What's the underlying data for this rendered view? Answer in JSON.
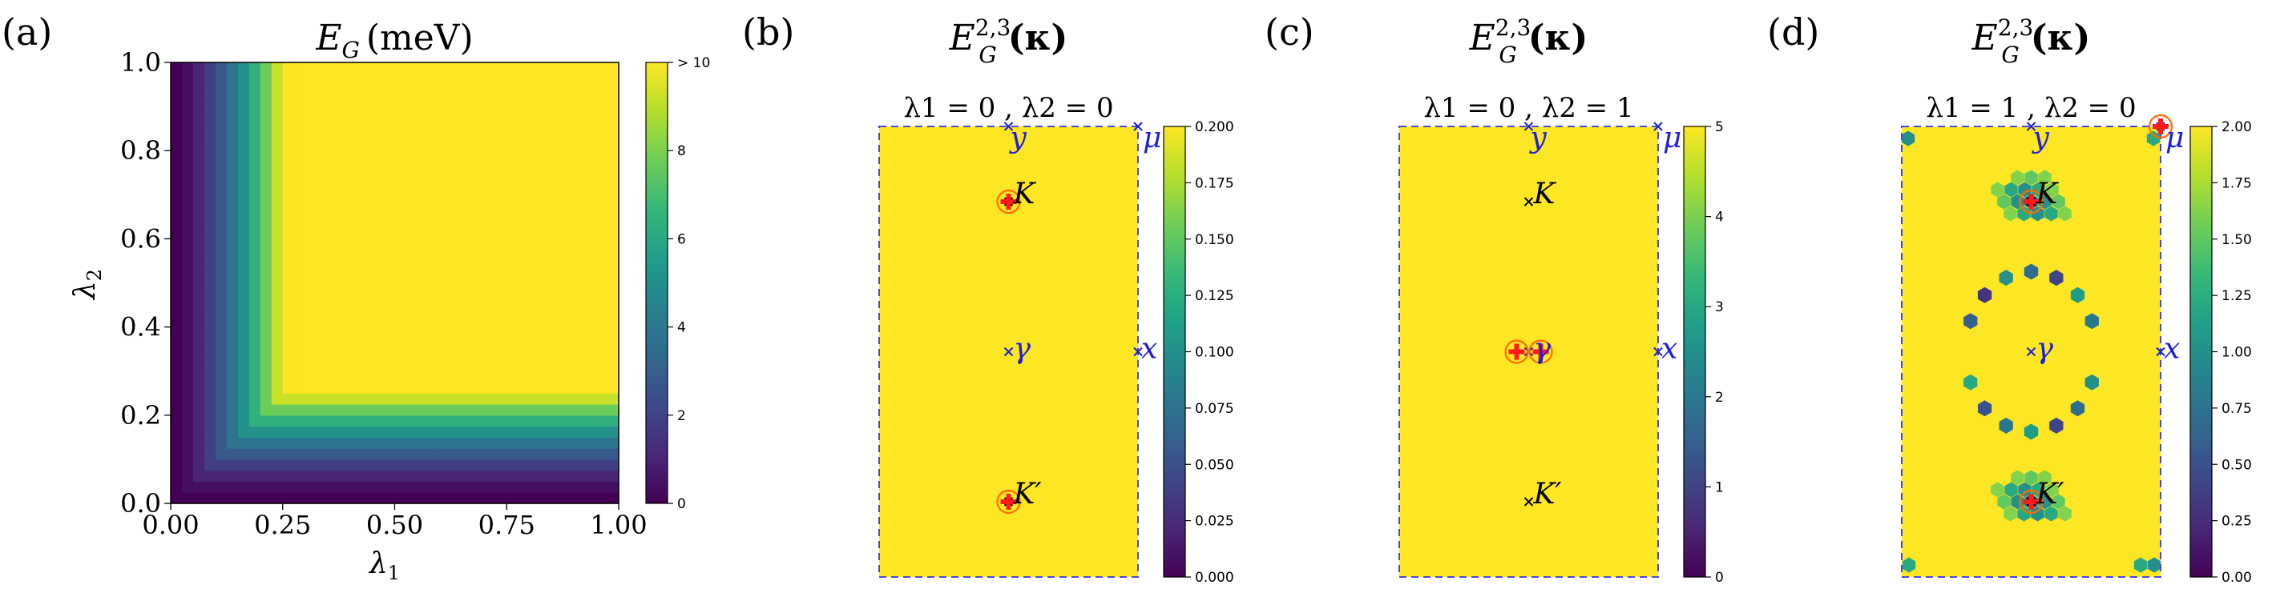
{
  "chart_data": [
    {
      "panel": "(a)",
      "type": "heatmap",
      "title": "E_G (meV)",
      "title_main": "E",
      "title_sub": "G",
      "title_unit": "(meV)",
      "xlabel": "λ1",
      "ylabel": "λ2",
      "xlim": [
        0,
        1
      ],
      "ylim": [
        0,
        1
      ],
      "xticks": [
        "0.00",
        "0.25",
        "0.50",
        "0.75",
        "1.00"
      ],
      "yticks": [
        "0.0",
        "0.2",
        "0.4",
        "0.6",
        "0.8",
        "1.0"
      ],
      "colormap": "viridis",
      "colorbar": {
        "range": [
          0,
          10
        ],
        "ticks": [
          "0",
          "2",
          "4",
          "6",
          "8",
          "> 10"
        ]
      },
      "description": "E_G saturates (>10 meV) when both λ1 and λ2 exceed about 0.25; near-zero along the axes."
    },
    {
      "panel": "(b)",
      "type": "heatmap",
      "title_main": "E",
      "title_sub": "G",
      "title_sup": "2,3",
      "title_arg": "(κ)",
      "params": "λ1 = 0 ,   λ2 = 0",
      "colorbar": {
        "range": [
          0,
          0.2
        ],
        "ticks": [
          "0.000",
          "0.025",
          "0.050",
          "0.075",
          "0.100",
          "0.125",
          "0.150",
          "0.175",
          "0.200"
        ]
      },
      "points": [
        {
          "label": "y",
          "color": "#1f1fd6"
        },
        {
          "label": "μ",
          "color": "#1f1fd6"
        },
        {
          "label": "γ",
          "color": "#1f1fd6"
        },
        {
          "label": "x",
          "color": "#1f1fd6"
        },
        {
          "label": "K",
          "color": "#000000",
          "nodal": true
        },
        {
          "label": "K′",
          "color": "#000000",
          "nodal": true
        }
      ]
    },
    {
      "panel": "(c)",
      "type": "heatmap",
      "title_main": "E",
      "title_sub": "G",
      "title_sup": "2,3",
      "title_arg": "(κ)",
      "params": "λ1 = 0 ,   λ2 = 1",
      "colorbar": {
        "range": [
          0,
          5
        ],
        "ticks": [
          "0",
          "1",
          "2",
          "3",
          "4",
          "5"
        ]
      },
      "points": [
        {
          "label": "y",
          "color": "#1f1fd6"
        },
        {
          "label": "μ",
          "color": "#1f1fd6"
        },
        {
          "label": "γ",
          "color": "#1f1fd6",
          "nodal_pair": true
        },
        {
          "label": "x",
          "color": "#1f1fd6"
        },
        {
          "label": "K",
          "color": "#000000"
        },
        {
          "label": "K′",
          "color": "#000000"
        }
      ]
    },
    {
      "panel": "(d)",
      "type": "heatmap",
      "title_main": "E",
      "title_sub": "G",
      "title_sup": "2,3",
      "title_arg": "(κ)",
      "params": "λ1 = 1 ,   λ2 = 0",
      "colorbar": {
        "range": [
          0,
          2
        ],
        "ticks": [
          "0.00",
          "0.25",
          "0.50",
          "0.75",
          "1.00",
          "1.25",
          "1.50",
          "1.75",
          "2.00"
        ]
      },
      "points": [
        {
          "label": "y",
          "color": "#1f1fd6"
        },
        {
          "label": "μ",
          "color": "#1f1fd6",
          "nodal": true
        },
        {
          "label": "γ",
          "color": "#1f1fd6"
        },
        {
          "label": "x",
          "color": "#1f1fd6"
        },
        {
          "label": "K",
          "color": "#000000",
          "nodal": true
        },
        {
          "label": "K′",
          "color": "#000000",
          "nodal": true
        }
      ]
    }
  ]
}
